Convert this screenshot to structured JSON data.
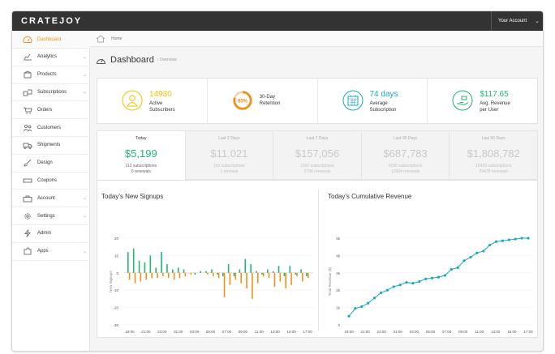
{
  "header": {
    "logo": "CRATEJOY",
    "account_label": "Your Account"
  },
  "sidebar": {
    "items": [
      {
        "label": "Dashboard",
        "icon": "dashboard-gauge-icon",
        "active": true,
        "chevron": false
      },
      {
        "label": "Analytics",
        "icon": "analytics-chart-icon",
        "active": false,
        "chevron": true
      },
      {
        "label": "Products",
        "icon": "products-box-icon",
        "active": false,
        "chevron": true
      },
      {
        "label": "Subscriptions",
        "icon": "subscriptions-boxes-icon",
        "active": false,
        "chevron": true
      },
      {
        "label": "Orders",
        "icon": "orders-cart-icon",
        "active": false,
        "chevron": false
      },
      {
        "label": "Customers",
        "icon": "customers-people-icon",
        "active": false,
        "chevron": false
      },
      {
        "label": "Shipments",
        "icon": "shipments-truck-icon",
        "active": false,
        "chevron": false
      },
      {
        "label": "Design",
        "icon": "design-brush-icon",
        "active": false,
        "chevron": false
      },
      {
        "label": "Coupons",
        "icon": "coupons-ticket-icon",
        "active": false,
        "chevron": false
      },
      {
        "label": "Account",
        "icon": "account-briefcase-icon",
        "active": false,
        "chevron": true
      },
      {
        "label": "Settings",
        "icon": "settings-gear-icon",
        "active": false,
        "chevron": true
      },
      {
        "label": "Admin",
        "icon": "admin-bolt-icon",
        "active": false,
        "chevron": false
      },
      {
        "label": "Apps",
        "icon": "apps-puzzle-icon",
        "active": false,
        "chevron": true
      }
    ]
  },
  "breadcrumb": {
    "home": "Home"
  },
  "page": {
    "title": "Dashboard",
    "subtitle": "Overview"
  },
  "stats": [
    {
      "value": "14930",
      "label1": "Active",
      "label2": "Subscribers",
      "color": "#f5c200",
      "icon": "user-icon"
    },
    {
      "value": "80%",
      "label1": "30-Day",
      "label2": "Retention",
      "color": "#f0901a",
      "icon": "retention-ring-icon"
    },
    {
      "value": "74 days",
      "label1": "Average",
      "label2": "Subscription",
      "color": "#1aa8c4",
      "icon": "calendar-icon"
    },
    {
      "value": "$117.65",
      "label1": "Avg. Revenue",
      "label2": "per User",
      "color": "#22b573",
      "icon": "money-hand-icon"
    }
  ],
  "periods": [
    {
      "label": "Today",
      "value": "$5,199",
      "subs": "112 subscriptions",
      "renewals": "0 renewals",
      "active": true
    },
    {
      "label": "Last 2 Days",
      "value": "$11,021",
      "subs": "116 subscriptions",
      "renewals": "1 renewal",
      "active": false
    },
    {
      "label": "Last 7 Days",
      "value": "$157,056",
      "subs": "1102 subscriptions",
      "renewals": "2796 renewals",
      "active": false
    },
    {
      "label": "Last 30 Days",
      "value": "$687,783",
      "subs": "5156 subscriptions",
      "renewals": "12064 renewals",
      "active": false
    },
    {
      "label": "Last 90 Days",
      "value": "$1,808,782",
      "subs": "15418 subscriptions",
      "renewals": "29478 renewals",
      "active": false
    }
  ],
  "chart_data": [
    {
      "type": "bar",
      "title": "Today's New Signups",
      "ylabel": "New Signups",
      "ylim": [
        -30,
        20
      ],
      "yticks": [
        20,
        10,
        0,
        -10,
        -20,
        -30
      ],
      "x_tick_labels": [
        "19:00",
        "21:00",
        "23:00",
        "01:00",
        "03:00",
        "05:00",
        "07:00",
        "09:00",
        "11:00",
        "13:00",
        "15:00",
        "17:00"
      ],
      "series": [
        {
          "color": "#22b573",
          "values": [
            12,
            14,
            7,
            6,
            10,
            3,
            12,
            5,
            2,
            3,
            2,
            0,
            -1,
            1,
            1,
            2,
            -1,
            -2,
            5,
            -2,
            2,
            8,
            5,
            1,
            -1,
            2,
            1,
            4,
            -2,
            4,
            -1,
            2,
            -2
          ]
        },
        {
          "color": "#f0901a",
          "values": [
            -4,
            -6,
            -5,
            -4,
            -3,
            -3,
            -2,
            -3,
            -4,
            -3,
            -2,
            -1,
            0,
            0,
            -1,
            -2,
            -3,
            -14,
            -7,
            -4,
            -6,
            -9,
            -15,
            -6,
            -2,
            -3,
            -8,
            -5,
            -9,
            -7,
            -2,
            -5,
            -3
          ]
        }
      ]
    },
    {
      "type": "line",
      "title": "Today's Cumulative Revenue",
      "ylabel": "Total Revenue ($)",
      "ylim": [
        0,
        5000
      ],
      "yticks": [
        "0",
        "1k",
        "2k",
        "3k",
        "4k",
        "5k"
      ],
      "x_tick_labels": [
        "19:00",
        "21:00",
        "23:00",
        "01:00",
        "03:00",
        "05:00",
        "07:00",
        "09:00",
        "11:00",
        "13:00",
        "15:00",
        "17:00"
      ],
      "color": "#1aa8c4",
      "values": [
        500,
        950,
        1050,
        1250,
        1550,
        1850,
        2000,
        2200,
        2300,
        2450,
        2400,
        2500,
        2650,
        2700,
        2750,
        2850,
        3200,
        3300,
        3700,
        3900,
        4150,
        4250,
        4600,
        4800,
        4850,
        4900,
        4950,
        5000,
        5000
      ]
    }
  ]
}
